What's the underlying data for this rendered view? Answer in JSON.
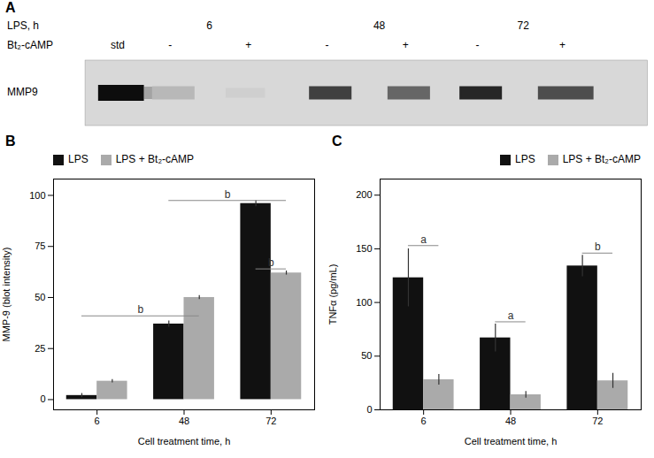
{
  "chart_data": [
    {
      "type": "blot",
      "title": "A",
      "annotations": [
        "LPS, h",
        "Bt₂-cAMP",
        "6",
        "48",
        "72",
        "std",
        "-",
        "+",
        "-",
        "+",
        "-",
        "+",
        "MMP9"
      ]
    },
    {
      "type": "bar",
      "title": "B",
      "categories": [
        "6",
        "48",
        "72"
      ],
      "series": [
        {
          "name": "LPS",
          "color": "#111111",
          "values": [
            2,
            37,
            96
          ],
          "errors": [
            1.0,
            1.5,
            1.5
          ]
        },
        {
          "name": "LPS + Bt₂-cAMP",
          "color": "#aaaaaa",
          "values": [
            9,
            50,
            62
          ],
          "errors": [
            0.8,
            1.0,
            1.0
          ]
        }
      ],
      "xlabel": "Cell treatment time, h",
      "ylabel": "MMP-9 (blot intensity)",
      "ylim": [
        -5,
        108
      ],
      "yticks": [
        0,
        25,
        50,
        75,
        100
      ],
      "grid": false,
      "legend": "upper left",
      "annotations": [
        {
          "text": "b",
          "from": "6",
          "to": "48",
          "y": 41
        },
        {
          "text": "b",
          "from": "48",
          "to": "72",
          "y": 97.5
        },
        {
          "text": "b",
          "from": "72",
          "to": "72",
          "y": 64
        }
      ]
    },
    {
      "type": "bar",
      "title": "C",
      "categories": [
        "6",
        "48",
        "72"
      ],
      "series": [
        {
          "name": "LPS",
          "color": "#111111",
          "values": [
            123,
            67,
            134
          ],
          "errors": [
            27,
            13,
            10
          ]
        },
        {
          "name": "LPS + Bt₂-cAMP",
          "color": "#aaaaaa",
          "values": [
            28,
            14,
            27
          ],
          "errors": [
            5,
            3,
            7
          ]
        }
      ],
      "xlabel": "Cell treatment time, h",
      "ylabel": "TNFα (pg/mL)",
      "ylim": [
        0,
        215
      ],
      "yticks": [
        0,
        50,
        100,
        150,
        200
      ],
      "grid": false,
      "legend": "upper right",
      "annotations": [
        {
          "text": "a",
          "from": "6",
          "to": "6",
          "y": 153
        },
        {
          "text": "a",
          "from": "48",
          "to": "48",
          "y": 82
        },
        {
          "text": "b",
          "from": "72",
          "to": "72",
          "y": 146
        }
      ]
    }
  ]
}
